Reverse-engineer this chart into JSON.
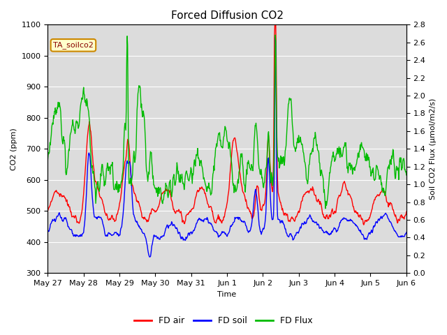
{
  "title": "Forced Diffusion CO2",
  "xlabel": "Time",
  "ylabel_left": "CO2 (ppm)",
  "ylabel_right": "Soil CO2 Flux (μmol/m2/s)",
  "annotation": "TA_soilco2",
  "ylim_left": [
    300,
    1100
  ],
  "ylim_right": [
    0.0,
    2.8
  ],
  "xtick_labels": [
    "May 27",
    "May 28",
    "May 29",
    "May 30",
    "May 31",
    "Jun 1",
    "Jun 2",
    "Jun 3",
    "Jun 4",
    "Jun 5",
    "Jun 6"
  ],
  "color_air": "#ff0000",
  "color_soil": "#0000ff",
  "color_flux": "#00bb00",
  "legend_entries": [
    "FD air",
    "FD soil",
    "FD Flux"
  ],
  "bg_color": "#dcdcdc",
  "line_width": 1.0,
  "title_fontsize": 11,
  "axis_label_fontsize": 8,
  "tick_fontsize": 8,
  "legend_fontsize": 9,
  "n_points": 800,
  "seed": 7
}
